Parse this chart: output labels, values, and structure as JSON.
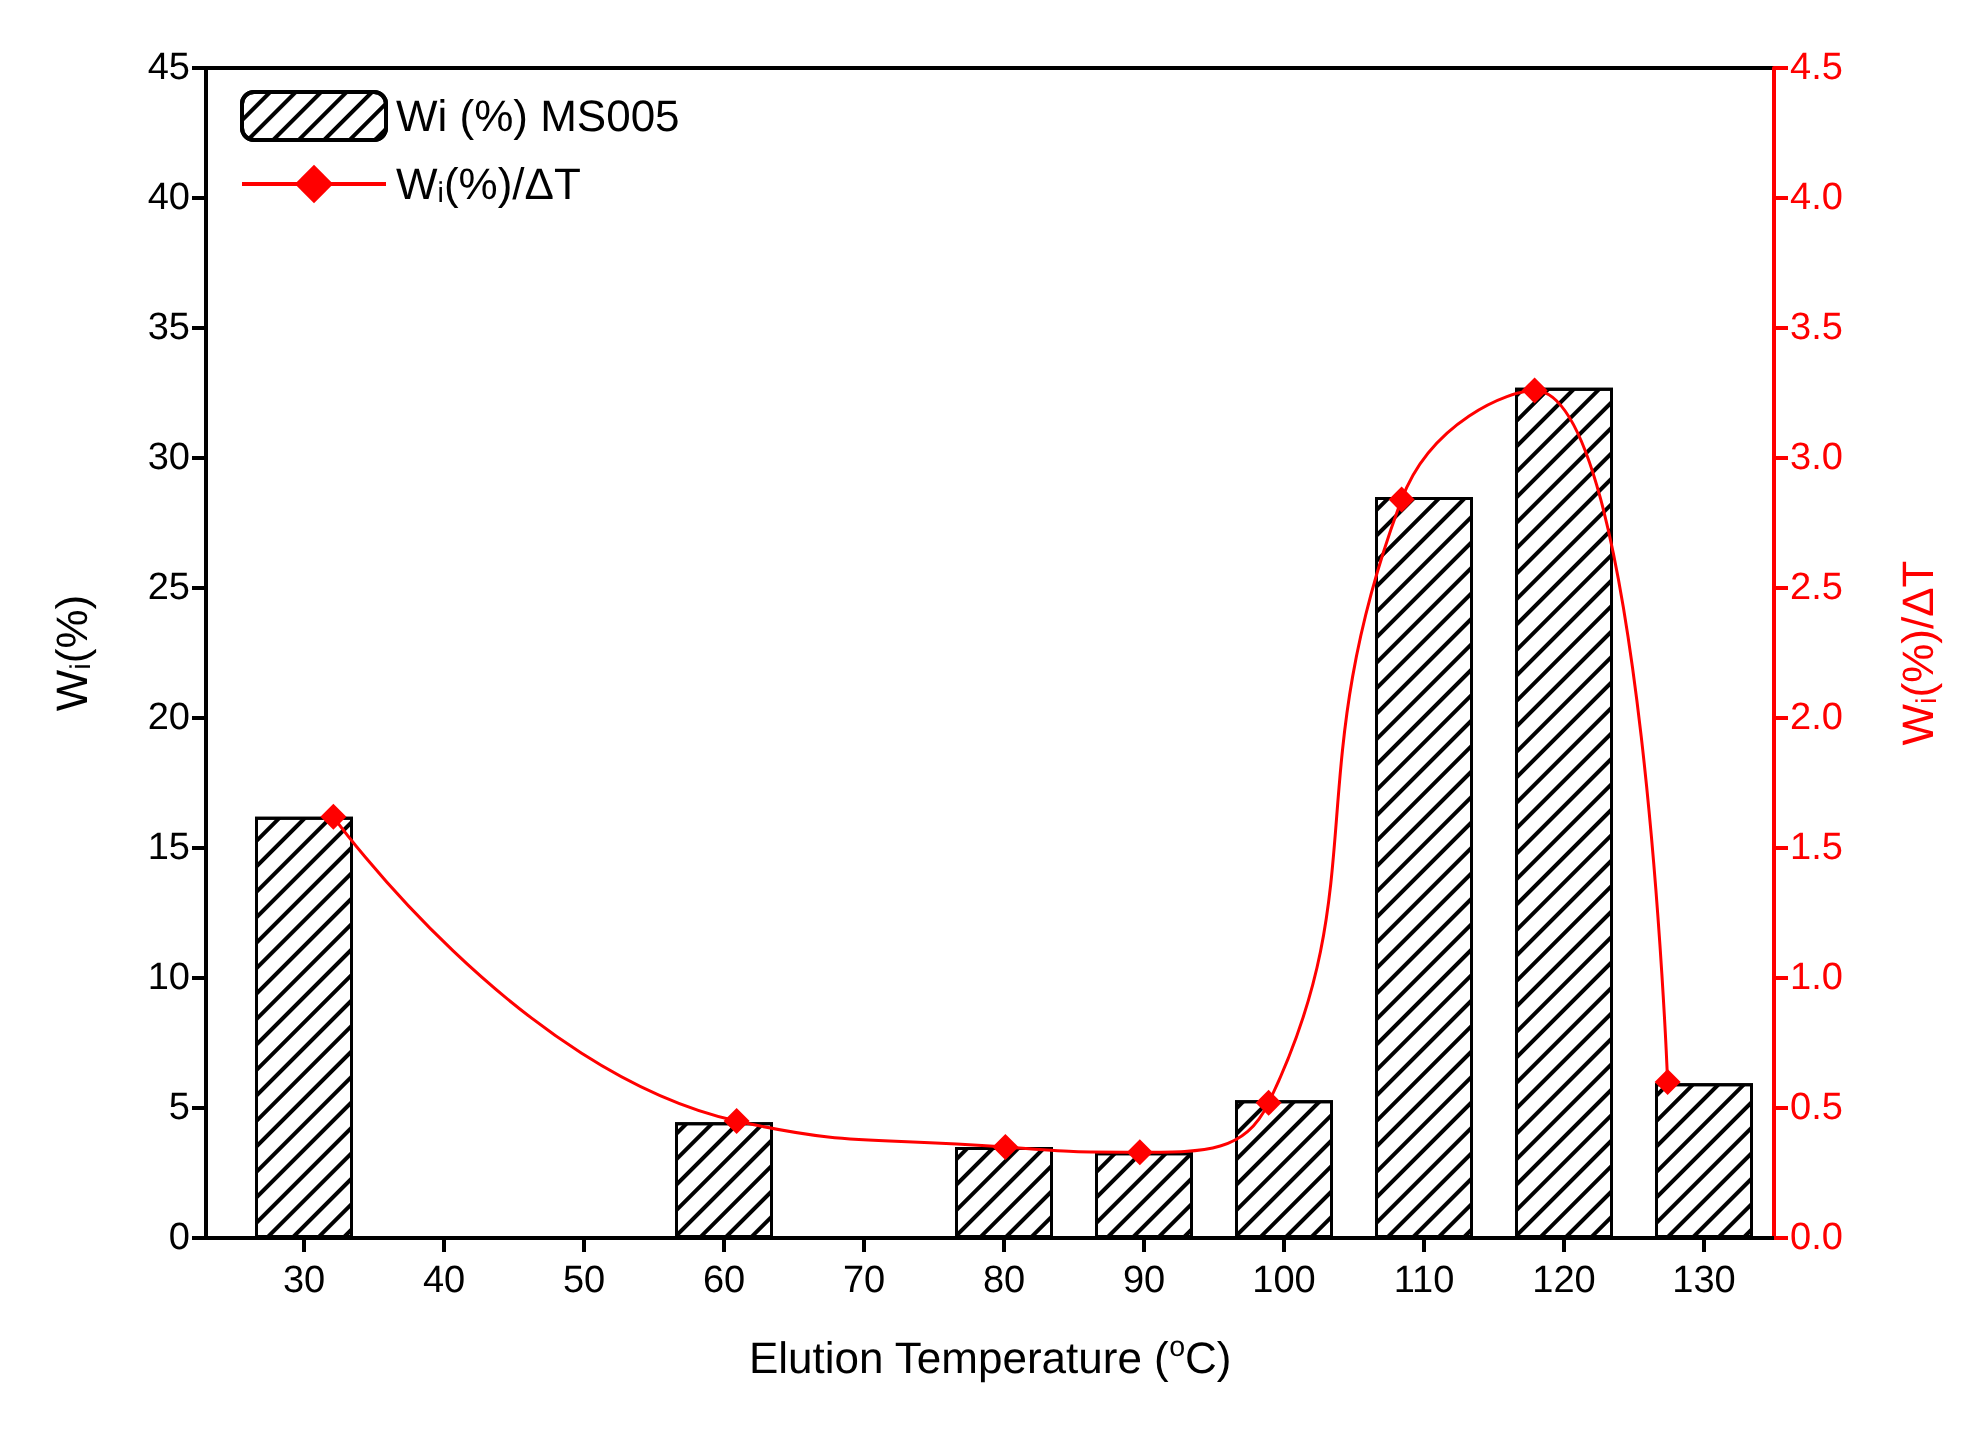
{
  "chart_data": {
    "type": "bar",
    "xlabel": "Elution Temperature ($^{o}$C)",
    "ylabel": "W$_{i}$(%)",
    "y2label": "W$_{i}$(%)/ΔT",
    "xlim": [
      23,
      135
    ],
    "xticks": [
      30,
      40,
      50,
      60,
      70,
      80,
      90,
      100,
      110,
      120,
      130
    ],
    "ylim": [
      0,
      45
    ],
    "yticks": [
      0,
      5,
      10,
      15,
      20,
      25,
      30,
      35,
      40,
      45
    ],
    "y2lim": [
      0,
      4.5
    ],
    "y2ticks": [
      {
        "value": 0,
        "label": "0.0"
      },
      {
        "value": 0.5,
        "label": "0.5"
      },
      {
        "value": 1,
        "label": "1.0"
      },
      {
        "value": 1.5,
        "label": "1.5"
      },
      {
        "value": 2,
        "label": "2.0"
      },
      {
        "value": 2.5,
        "label": "2.5"
      },
      {
        "value": 3,
        "label": "3.0"
      },
      {
        "value": 3.5,
        "label": "3.5"
      },
      {
        "value": 4,
        "label": "4.0"
      },
      {
        "value": 4.5,
        "label": "4.5"
      }
    ],
    "series": [
      {
        "name": "Wi (%) MS005",
        "color": "#000000",
        "x": [
          30,
          60,
          80,
          90,
          100,
          110,
          120,
          130
        ],
        "values": [
          16.2,
          4.45,
          3.5,
          3.3,
          5.3,
          28.5,
          32.7,
          5.95
        ]
      },
      {
        "name": "W$_{i}$(%)/ΔT",
        "type": "line",
        "axis": "y2",
        "color": "#ff0000",
        "marker": "diamond",
        "x": [
          32.1,
          60.9,
          80.1,
          89.7,
          98.9,
          108.4,
          117.9,
          127.4
        ],
        "values": [
          1.62,
          0.45,
          0.35,
          0.33,
          0.52,
          2.84,
          3.26,
          0.6
        ]
      }
    ],
    "grid": false,
    "legend": "top left"
  }
}
